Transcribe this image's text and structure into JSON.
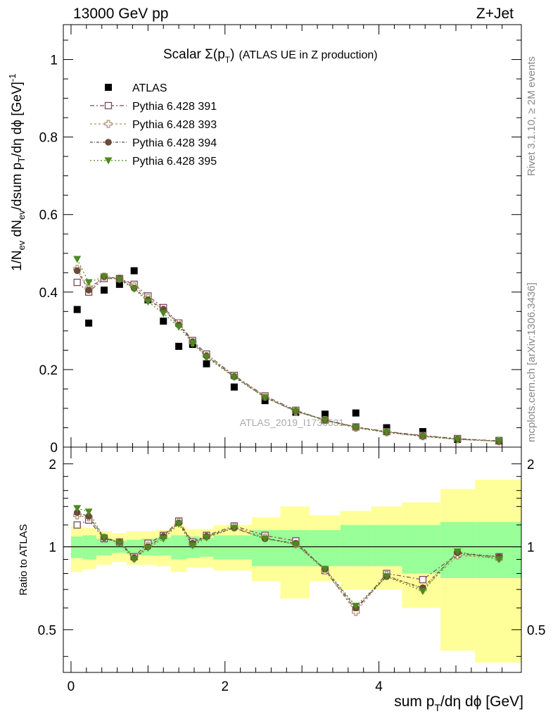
{
  "header": {
    "energy": "13000 GeV pp",
    "process": "Z+Jet"
  },
  "side_text": {
    "rivet": "Rivet 3.1.10, ≥ 2M events",
    "mcplots": "mcplots.cern.ch [arXiv:1306.3436]"
  },
  "chart_data": [
    {
      "type": "scatter",
      "panel": "main",
      "title": "Scalar Σ(p_T) (ATLAS UE in Z production)",
      "title_main": "Scalar Σ(p",
      "title_sub": "T",
      "title_close": ")",
      "title_suffix": "(ATLAS UE in Z production)",
      "ylabel": "1/N_ev dN_ev/dsum p_T/dη dϕ [GeV]^-1",
      "xlim": [
        -0.1,
        5.85
      ],
      "ylim": [
        0,
        1.09
      ],
      "yticks": [
        "0",
        "0.2",
        "0.4",
        "0.6",
        "0.8",
        "1"
      ],
      "ytick_values": [
        0,
        0.2,
        0.4,
        0.6,
        0.8,
        1.0
      ],
      "watermark": "ATLAS_2019_I1736531",
      "legend_position": "top-left",
      "x": [
        0.08,
        0.23,
        0.43,
        0.63,
        0.82,
        1.0,
        1.2,
        1.4,
        1.58,
        1.76,
        2.12,
        2.52,
        2.92,
        3.3,
        3.7,
        4.1,
        4.57,
        5.02,
        5.56
      ],
      "series": [
        {
          "name": "ATLAS",
          "color": "#000000",
          "marker": "square-filled",
          "values": [
            0.355,
            0.32,
            0.405,
            0.42,
            0.455,
            0.38,
            0.325,
            0.26,
            0.265,
            0.215,
            0.155,
            0.12,
            0.09,
            0.085,
            0.088,
            0.05,
            0.04,
            0.02,
            0.017
          ]
        },
        {
          "name": "Pythia 6.428 391",
          "color": "#7b4a5d",
          "marker": "square-open",
          "values": [
            0.425,
            0.4,
            0.435,
            0.435,
            0.42,
            0.39,
            0.36,
            0.32,
            0.275,
            0.24,
            0.185,
            0.132,
            0.095,
            0.07,
            0.052,
            0.04,
            0.03,
            0.022,
            0.016
          ]
        },
        {
          "name": "Pythia 6.428 393",
          "color": "#a89060",
          "marker": "cross-open",
          "values": [
            0.46,
            0.41,
            0.44,
            0.435,
            0.415,
            0.385,
            0.355,
            0.32,
            0.27,
            0.235,
            0.183,
            0.13,
            0.092,
            0.07,
            0.05,
            0.038,
            0.028,
            0.02,
            0.015
          ]
        },
        {
          "name": "Pythia 6.428 394",
          "color": "#6b4a3a",
          "marker": "circle-filled",
          "values": [
            0.455,
            0.405,
            0.44,
            0.435,
            0.41,
            0.38,
            0.355,
            0.315,
            0.272,
            0.235,
            0.182,
            0.128,
            0.093,
            0.07,
            0.052,
            0.039,
            0.029,
            0.021,
            0.015
          ]
        },
        {
          "name": "Pythia 6.428 395",
          "color": "#4d8a1e",
          "marker": "triangle-down-filled",
          "values": [
            0.485,
            0.425,
            0.44,
            0.432,
            0.408,
            0.375,
            0.345,
            0.31,
            0.268,
            0.232,
            0.18,
            0.128,
            0.092,
            0.069,
            0.05,
            0.038,
            0.027,
            0.02,
            0.015
          ]
        }
      ]
    },
    {
      "type": "scatter",
      "panel": "ratio",
      "ylabel": "Ratio to ATLAS",
      "xlabel": "sum p_T/dη dϕ [GeV]",
      "xlabel_main": "sum p",
      "xlabel_sub": "T",
      "xlabel_suffix": "/dη dϕ [GeV]",
      "xlim": [
        -0.1,
        5.85
      ],
      "ylim": [
        0.35,
        2.3
      ],
      "log_y": true,
      "reference_line": 1.0,
      "xticks": [
        "0",
        "2",
        "4"
      ],
      "xtick_values": [
        0,
        2,
        4
      ],
      "yticks": [
        "0.5",
        "1",
        "2"
      ],
      "ytick_values": [
        0.5,
        1,
        2
      ],
      "bins": [
        0.0,
        0.15,
        0.33,
        0.53,
        0.72,
        0.91,
        1.1,
        1.3,
        1.5,
        1.67,
        1.85,
        2.35,
        2.72,
        3.1,
        3.5,
        3.9,
        4.3,
        4.8,
        5.25,
        5.85
      ],
      "band_inner": [
        [
          0.91,
          1.09
        ],
        [
          0.9,
          1.1
        ],
        [
          0.93,
          1.07
        ],
        [
          0.95,
          1.05
        ],
        [
          0.94,
          1.06
        ],
        [
          0.93,
          1.07
        ],
        [
          0.93,
          1.08
        ],
        [
          0.9,
          1.1
        ],
        [
          0.91,
          1.09
        ],
        [
          0.92,
          1.08
        ],
        [
          0.9,
          1.1
        ],
        [
          0.85,
          1.15
        ],
        [
          0.85,
          1.15
        ],
        [
          0.85,
          1.15
        ],
        [
          0.85,
          1.2
        ],
        [
          0.85,
          1.2
        ],
        [
          0.8,
          1.2
        ],
        [
          0.77,
          1.23
        ],
        [
          0.77,
          1.23
        ]
      ],
      "band_outer": [
        [
          0.81,
          1.19
        ],
        [
          0.83,
          1.17
        ],
        [
          0.86,
          1.14
        ],
        [
          0.88,
          1.12
        ],
        [
          0.86,
          1.14
        ],
        [
          0.86,
          1.14
        ],
        [
          0.85,
          1.15
        ],
        [
          0.81,
          1.19
        ],
        [
          0.84,
          1.16
        ],
        [
          0.84,
          1.16
        ],
        [
          0.82,
          1.2
        ],
        [
          0.75,
          1.28
        ],
        [
          0.65,
          1.4
        ],
        [
          0.75,
          1.3
        ],
        [
          0.7,
          1.35
        ],
        [
          0.7,
          1.4
        ],
        [
          0.6,
          1.45
        ],
        [
          0.42,
          1.62
        ],
        [
          0.38,
          1.75
        ]
      ],
      "x": [
        0.08,
        0.23,
        0.43,
        0.63,
        0.82,
        1.0,
        1.2,
        1.4,
        1.58,
        1.76,
        2.12,
        2.52,
        2.92,
        3.3,
        3.7,
        4.1,
        4.57,
        5.02,
        5.56
      ],
      "series": [
        {
          "name": "Pythia 6.428 391",
          "values": [
            1.2,
            1.25,
            1.07,
            1.04,
            0.92,
            1.03,
            1.1,
            1.24,
            1.04,
            1.1,
            1.19,
            1.1,
            1.05,
            0.82,
            0.59,
            0.8,
            0.76,
            0.94,
            0.92
          ]
        },
        {
          "name": "Pythia 6.428 393",
          "values": [
            1.3,
            1.28,
            1.08,
            1.04,
            0.91,
            1.01,
            1.09,
            1.23,
            1.02,
            1.09,
            1.18,
            1.08,
            1.02,
            0.82,
            0.58,
            0.79,
            0.7,
            0.93,
            0.91
          ]
        },
        {
          "name": "Pythia 6.428 394",
          "values": [
            1.33,
            1.29,
            1.08,
            1.04,
            0.91,
            1.0,
            1.09,
            1.22,
            1.03,
            1.09,
            1.17,
            1.07,
            1.03,
            0.83,
            0.6,
            0.78,
            0.71,
            0.95,
            0.92
          ]
        },
        {
          "name": "Pythia 6.428 395",
          "values": [
            1.38,
            1.34,
            1.08,
            1.03,
            0.9,
            0.99,
            1.07,
            1.21,
            1.01,
            1.08,
            1.17,
            1.07,
            1.02,
            0.83,
            0.61,
            0.78,
            0.69,
            0.96,
            0.9
          ]
        }
      ]
    }
  ]
}
